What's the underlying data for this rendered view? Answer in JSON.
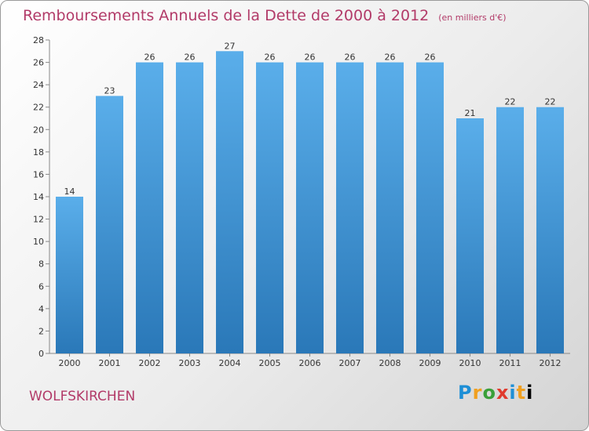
{
  "title": "Remboursements Annuels de la Dette de 2000 à 2012",
  "units": "(en milliers d'€)",
  "city": "WOLFSKIRCHEN",
  "logo": "Proxiti",
  "colors": {
    "title": "#b23a68",
    "bar_top": "#5aaeea",
    "bar_bottom": "#2a78b8"
  },
  "chart_data": {
    "type": "bar",
    "categories": [
      "2000",
      "2001",
      "2002",
      "2003",
      "2004",
      "2005",
      "2006",
      "2007",
      "2008",
      "2009",
      "2010",
      "2011",
      "2012"
    ],
    "values": [
      14,
      23,
      26,
      26,
      27,
      26,
      26,
      26,
      26,
      26,
      21,
      22,
      22
    ],
    "ylim": [
      0,
      28
    ],
    "yticks": [
      0,
      2,
      4,
      6,
      8,
      10,
      12,
      14,
      16,
      18,
      20,
      22,
      24,
      26,
      28
    ],
    "grid": false
  }
}
